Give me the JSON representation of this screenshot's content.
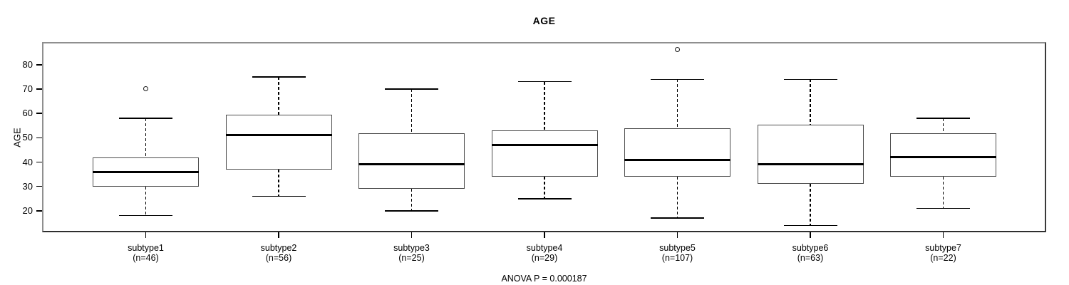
{
  "chart_data": {
    "type": "box",
    "title": "AGE",
    "ylabel": "AGE",
    "xlabel": "",
    "annotation": "ANOVA P = 0.000187",
    "ylim": [
      11.2,
      89.3
    ],
    "yticks": [
      20,
      30,
      40,
      50,
      60,
      70,
      80
    ],
    "grid": false,
    "legend": "none",
    "groups": [
      {
        "label": "subtype1",
        "n_label": "(n=46)",
        "n": 46,
        "whisker_low": 18,
        "q1": 30,
        "median": 36,
        "q3": 42,
        "whisker_high": 58,
        "outliers": [
          70
        ]
      },
      {
        "label": "subtype2",
        "n_label": "(n=56)",
        "n": 56,
        "whisker_low": 26,
        "q1": 37,
        "median": 51,
        "q3": 59.5,
        "whisker_high": 75,
        "outliers": []
      },
      {
        "label": "subtype3",
        "n_label": "(n=25)",
        "n": 25,
        "whisker_low": 20,
        "q1": 29,
        "median": 39,
        "q3": 52,
        "whisker_high": 70,
        "outliers": []
      },
      {
        "label": "subtype4",
        "n_label": "(n=29)",
        "n": 29,
        "whisker_low": 25,
        "q1": 34,
        "median": 47,
        "q3": 53,
        "whisker_high": 73,
        "outliers": []
      },
      {
        "label": "subtype5",
        "n_label": "(n=107)",
        "n": 107,
        "whisker_low": 17,
        "q1": 34,
        "median": 41,
        "q3": 54,
        "whisker_high": 74,
        "outliers": [
          86
        ]
      },
      {
        "label": "subtype6",
        "n_label": "(n=63)",
        "n": 63,
        "whisker_low": 14,
        "q1": 31,
        "median": 39,
        "q3": 55.5,
        "whisker_high": 74,
        "outliers": []
      },
      {
        "label": "subtype7",
        "n_label": "(n=22)",
        "n": 22,
        "whisker_low": 21,
        "q1": 34,
        "median": 42,
        "q3": 52,
        "whisker_high": 58,
        "outliers": []
      }
    ],
    "colors": {
      "line": "#000000",
      "box_border": "#4d4d4d",
      "frame": "#8f8f8f",
      "background": "#ffffff"
    }
  }
}
